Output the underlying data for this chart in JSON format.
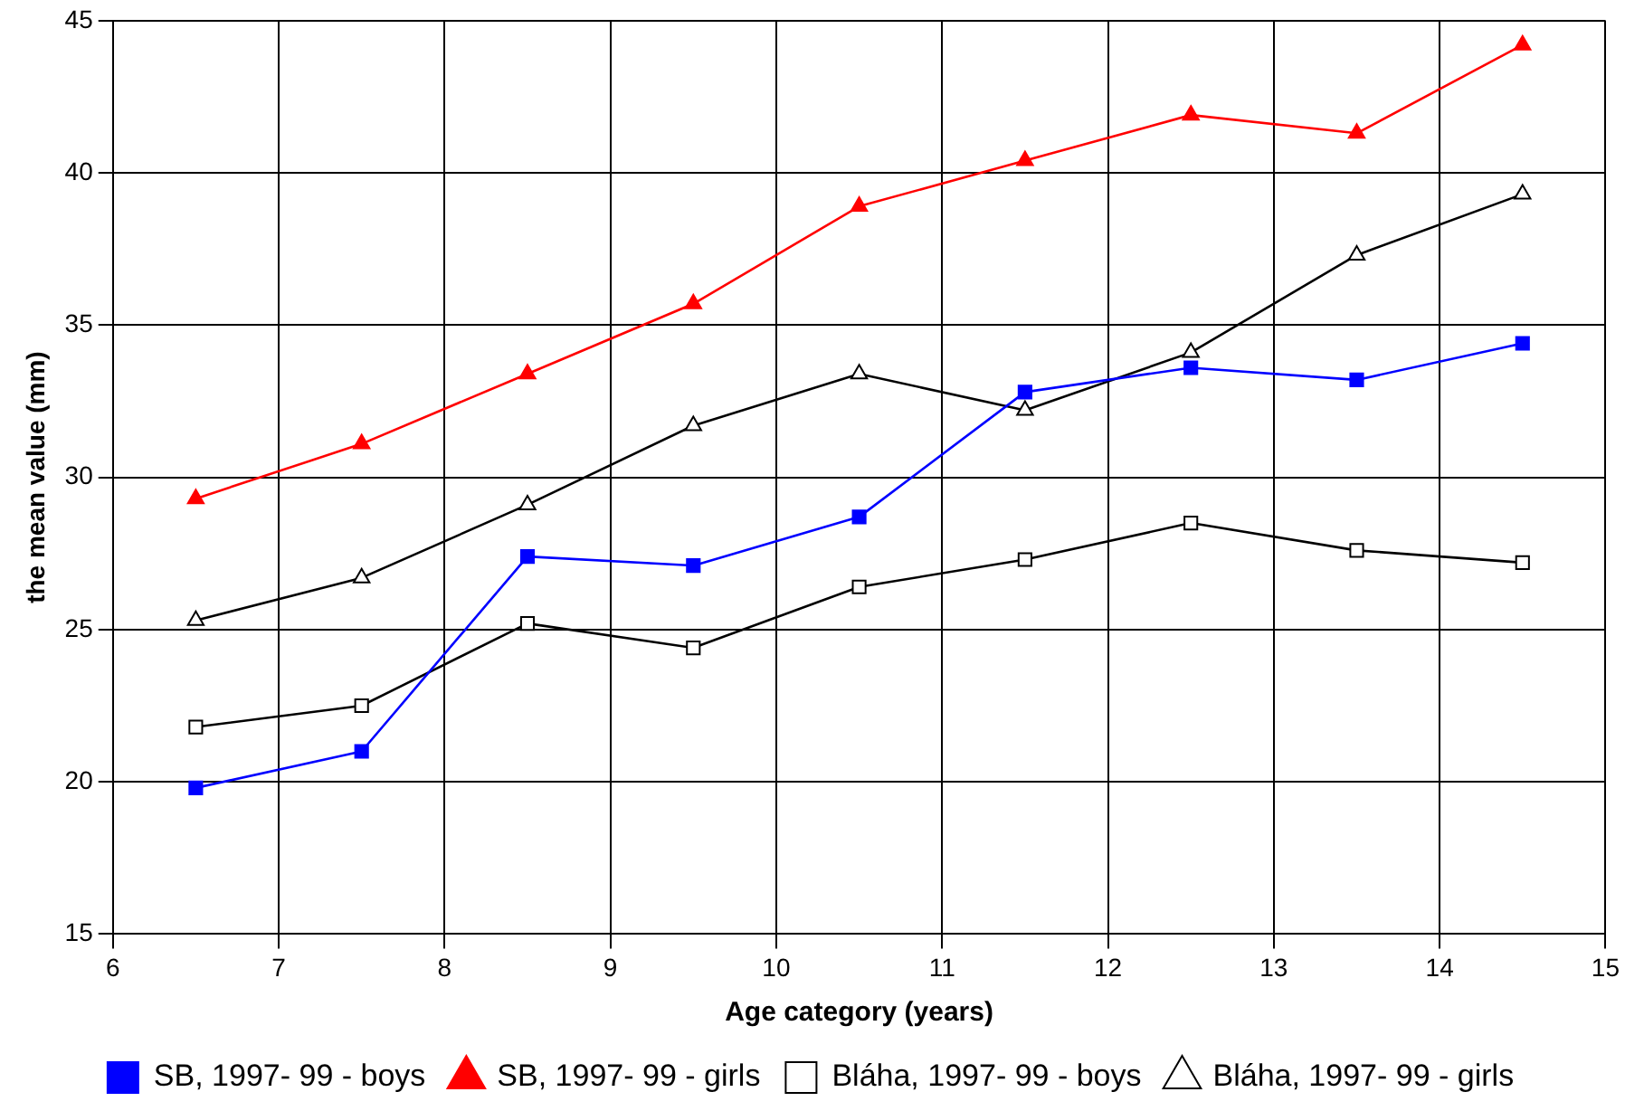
{
  "chart_data": {
    "type": "line",
    "xlabel": "Age category (years)",
    "ylabel": "the mean value (mm)",
    "x": [
      6.5,
      7.5,
      8.5,
      9.5,
      10.5,
      11.5,
      12.5,
      13.5,
      14.5
    ],
    "series": [
      {
        "name": "SB, 1997- 99 - boys",
        "color": "#0000ff",
        "marker": "square",
        "values": [
          19.8,
          21.0,
          27.4,
          27.1,
          28.7,
          32.8,
          33.6,
          33.2,
          34.4
        ]
      },
      {
        "name": "SB, 1997- 99 - girls",
        "color": "#ff0000",
        "marker": "triangle",
        "values": [
          29.3,
          31.1,
          33.4,
          35.7,
          38.9,
          40.4,
          41.9,
          41.3,
          44.2
        ]
      },
      {
        "name": "Bláha, 1997- 99 - boys",
        "color": "#000000",
        "marker": "square",
        "values": [
          21.8,
          22.5,
          25.2,
          24.4,
          26.4,
          27.3,
          28.5,
          27.6,
          27.2
        ]
      },
      {
        "name": "Bláha, 1997- 99 - girls",
        "color": "#000000",
        "marker": "triangle",
        "values": [
          25.3,
          26.7,
          29.1,
          31.7,
          33.4,
          32.2,
          34.1,
          37.3,
          39.3
        ]
      }
    ],
    "xlim": [
      6,
      15
    ],
    "xticks": [
      6,
      7,
      8,
      9,
      10,
      11,
      12,
      13,
      14,
      15
    ],
    "ylim": [
      15,
      45
    ],
    "yticks": [
      15,
      20,
      25,
      30,
      35,
      40,
      45
    ],
    "grid": true,
    "legend": "bottom",
    "line_style": "solid"
  }
}
